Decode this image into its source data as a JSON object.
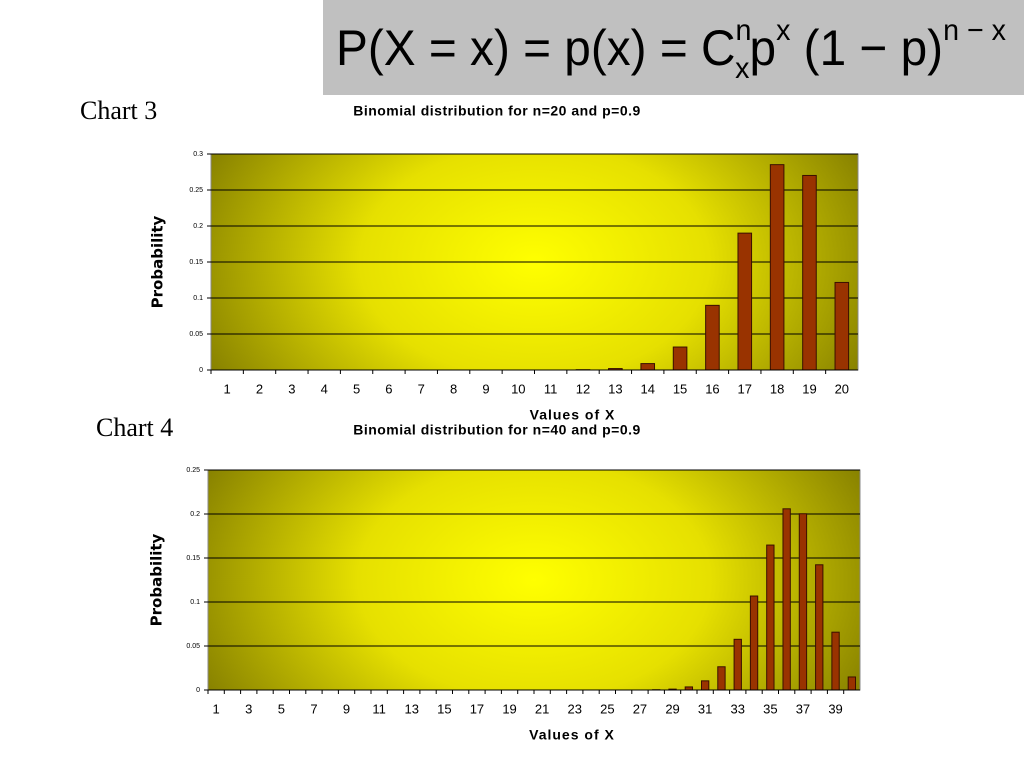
{
  "formula": [
    {
      "text": "P(X = x) = p(x) = C",
      "pos": "base"
    },
    {
      "text": "n",
      "pos": "sup"
    },
    {
      "text": "x",
      "pos": "sub"
    },
    {
      "text": "p",
      "pos": "base"
    },
    {
      "text": "x",
      "pos": "sup"
    },
    {
      "text": " (1 − p)",
      "pos": "base"
    },
    {
      "text": "n − x",
      "pos": "sup"
    }
  ],
  "chart_data": [
    {
      "type": "bar",
      "label": "Chart 3",
      "title": "Binomial distribution for n=20 and p=0.9",
      "x_label": "Values of X",
      "y_label": "Probability",
      "color": "#993300",
      "grid": true,
      "categories": [
        1,
        2,
        3,
        4,
        5,
        6,
        7,
        8,
        9,
        10,
        11,
        12,
        13,
        14,
        15,
        16,
        17,
        18,
        19,
        20
      ],
      "values": [
        0,
        0,
        0,
        0,
        0,
        0,
        0,
        0,
        0,
        0,
        0,
        0.0004,
        0.002,
        0.0089,
        0.0319,
        0.0898,
        0.1901,
        0.2852,
        0.2702,
        0.1216
      ],
      "ylim": [
        0,
        0.3
      ],
      "yticks": [
        0,
        0.05,
        0.1,
        0.15,
        0.2,
        0.25,
        0.3
      ]
    },
    {
      "type": "bar",
      "label": "Chart 4",
      "title": "Binomial distribution for n=40 and p=0.9",
      "x_label": "Values of X",
      "y_label": "Probability",
      "color": "#993300",
      "grid": true,
      "categories": [
        1,
        null,
        3,
        null,
        5,
        null,
        7,
        null,
        9,
        null,
        11,
        null,
        13,
        null,
        15,
        null,
        17,
        null,
        19,
        null,
        21,
        null,
        23,
        null,
        25,
        null,
        27,
        null,
        29,
        null,
        31,
        null,
        33,
        null,
        35,
        null,
        37,
        null,
        39,
        null
      ],
      "values": [
        0,
        0,
        0,
        0,
        0,
        0,
        0,
        0,
        0,
        0,
        0,
        0,
        0,
        0,
        0,
        0,
        0,
        0,
        0,
        0,
        0,
        0,
        0,
        0,
        0,
        0,
        0,
        0.0003,
        0.001,
        0.0035,
        0.0104,
        0.0264,
        0.0576,
        0.1068,
        0.1647,
        0.2059,
        0.2003,
        0.1423,
        0.0657,
        0.0148
      ],
      "ylim": [
        0,
        0.25
      ],
      "yticks": [
        0,
        0.05,
        0.1,
        0.15,
        0.2,
        0.25
      ]
    }
  ]
}
